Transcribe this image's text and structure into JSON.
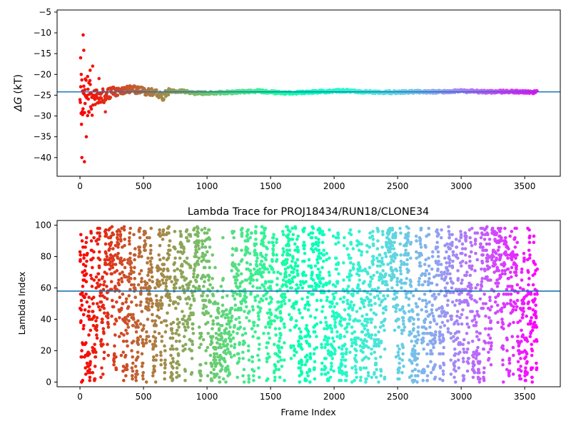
{
  "chart_data": [
    {
      "type": "scatter",
      "title": "",
      "xlabel": "",
      "ylabel": "ΔG (kT)",
      "ylabel_parts": {
        "symbol": "ΔG",
        "unit": "(kT)"
      },
      "xlim": [
        -180,
        3780
      ],
      "ylim": [
        -44.5,
        -4.5
      ],
      "xticks": [
        0,
        500,
        1000,
        1500,
        2000,
        2500,
        3000,
        3500
      ],
      "yticks": [
        -40,
        -35,
        -30,
        -25,
        -20,
        -15,
        -10,
        -5
      ],
      "ytick_labels": [
        "−40",
        "−35",
        "−30",
        "−25",
        "−20",
        "−15",
        "−10",
        "−5"
      ],
      "hline": {
        "y": -24.2,
        "color": "#1f77b4"
      },
      "colormap": "rainbow (early frames red → late frames violet)",
      "series_points": {
        "x": [
          5,
          10,
          12,
          15,
          20,
          25,
          30,
          35,
          40,
          50,
          60,
          70,
          80,
          100,
          120,
          150,
          200
        ],
        "y": [
          -16,
          -20,
          -32,
          -40,
          -24,
          -10.5,
          -14.2,
          -41,
          -27,
          -35,
          -20.5,
          -22,
          -19,
          -18,
          -25,
          -21,
          -29
        ]
      },
      "series_trend": {
        "x": [
          0,
          100,
          200,
          300,
          400,
          500,
          600,
          650,
          700,
          800,
          900,
          1000,
          1200,
          1400,
          1600,
          1800,
          2000,
          2100,
          2200,
          2400,
          2600,
          2800,
          3000,
          3200,
          3400,
          3600
        ],
        "y": [
          -25,
          -26,
          -25,
          -24,
          -23.5,
          -24,
          -24.5,
          -25.5,
          -24,
          -24,
          -24.5,
          -24.5,
          -24.3,
          -24,
          -24.5,
          -24.3,
          -24,
          -23.9,
          -24.2,
          -24.3,
          -24.2,
          -24.2,
          -24,
          -24.2,
          -24.1,
          -24.3
        ]
      }
    },
    {
      "type": "scatter",
      "title": "Lambda Trace for PROJ18434/RUN18/CLONE34",
      "xlabel": "Frame Index",
      "ylabel": "Lambda Index",
      "xlim": [
        -180,
        3780
      ],
      "ylim": [
        -3,
        103
      ],
      "xticks": [
        0,
        500,
        1000,
        1500,
        2000,
        2500,
        3000,
        3500
      ],
      "yticks": [
        0,
        20,
        40,
        60,
        80,
        100
      ],
      "hline": {
        "y": 58,
        "color": "#1f77b4"
      },
      "colormap": "rainbow (early frames red → late frames violet)",
      "n_frames": 3600,
      "lambda_range": [
        0,
        99
      ]
    }
  ]
}
